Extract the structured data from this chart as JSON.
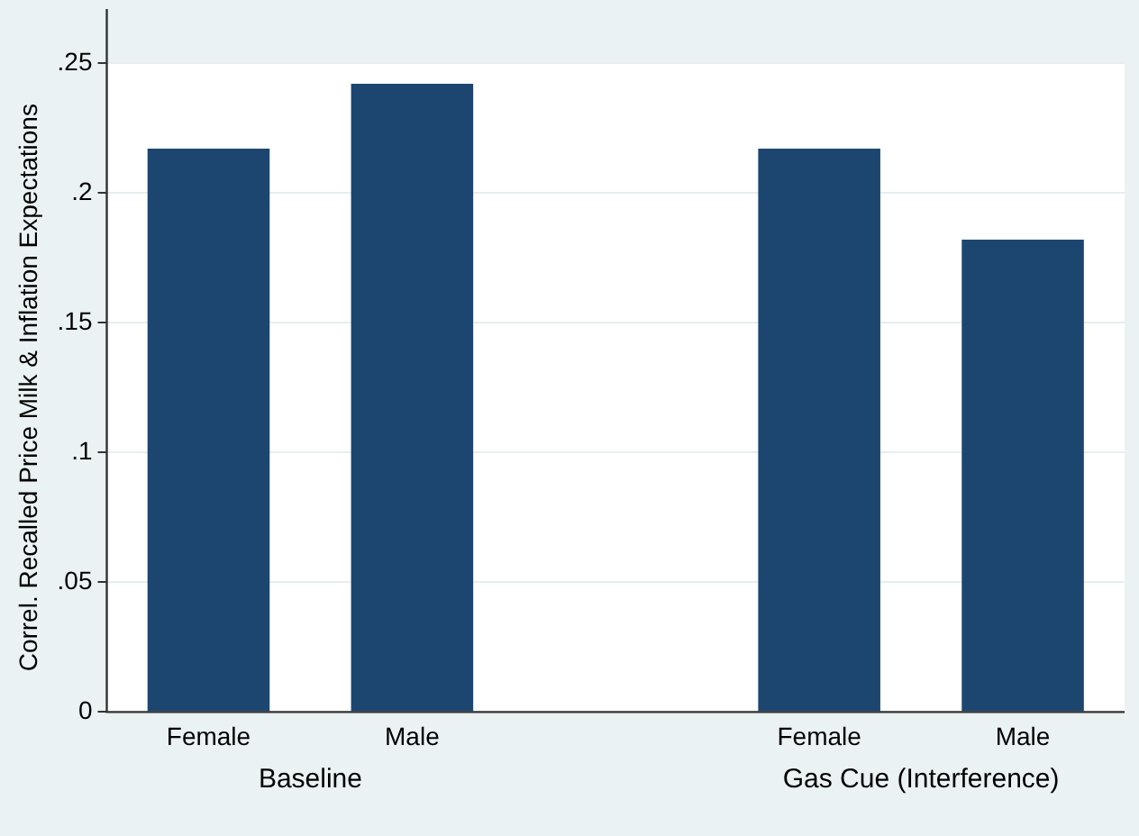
{
  "chart_data": {
    "type": "bar",
    "ylabel": "Correl. Recalled Price Milk & Inflation Expectations",
    "categories": [
      "Female",
      "Male",
      null,
      "Female",
      "Male"
    ],
    "values": [
      0.217,
      0.242,
      null,
      0.217,
      0.182
    ],
    "color": "#1c4670",
    "ylim": [
      0,
      0.25
    ],
    "yticks": [
      0,
      {
        "value": 0.05,
        "label": ".05"
      },
      {
        "value": 0.1,
        "label": ".1"
      },
      {
        "value": 0.15,
        "label": ".15"
      },
      {
        "value": 0.2,
        "label": ".2"
      },
      {
        "value": 0.25,
        "label": ".25"
      }
    ],
    "grid": "y",
    "legend": false,
    "annotations": [
      "Baseline",
      "Gas Cue (Interference)"
    ]
  }
}
